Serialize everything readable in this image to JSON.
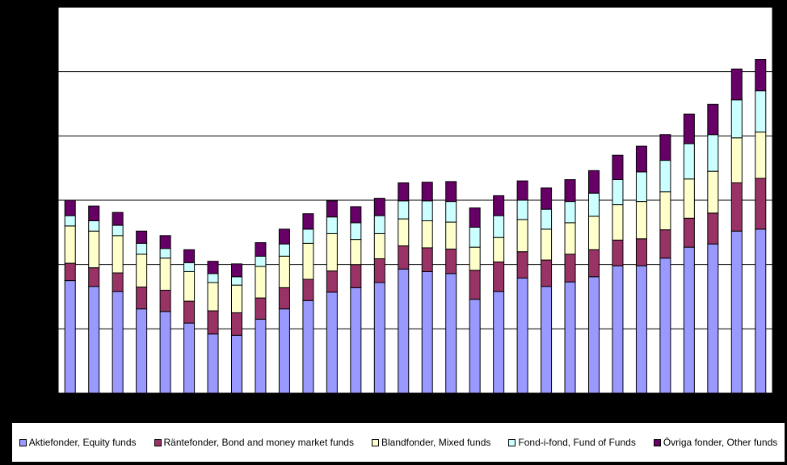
{
  "chart_data": {
    "type": "bar",
    "stacked": true,
    "title": "",
    "xlabel": "",
    "ylabel": "",
    "ylim": [
      0,
      6
    ],
    "grid": true,
    "legend_position": "bottom",
    "categories": [
      "",
      "",
      "",
      "",
      "",
      "",
      "",
      "",
      "",
      "",
      "",
      "",
      "",
      "",
      "",
      "",
      "",
      "",
      "",
      "",
      "",
      "",
      "",
      "",
      "",
      "",
      "",
      "",
      "",
      ""
    ],
    "series": [
      {
        "name": "Aktiefonder, Equity funds",
        "color": "#9999ff",
        "values": [
          1.75,
          1.66,
          1.58,
          1.31,
          1.27,
          1.09,
          0.92,
          0.9,
          1.15,
          1.31,
          1.44,
          1.57,
          1.64,
          1.72,
          1.93,
          1.89,
          1.86,
          1.46,
          1.58,
          1.79,
          1.66,
          1.73,
          1.81,
          1.98,
          1.98,
          2.1,
          2.27,
          2.32,
          2.52,
          2.55
        ]
      },
      {
        "name": "Räntefonder, Bond and money market funds",
        "color": "#993366",
        "values": [
          0.27,
          0.29,
          0.29,
          0.34,
          0.33,
          0.34,
          0.36,
          0.35,
          0.33,
          0.33,
          0.33,
          0.33,
          0.36,
          0.37,
          0.36,
          0.37,
          0.38,
          0.45,
          0.46,
          0.41,
          0.41,
          0.43,
          0.42,
          0.4,
          0.42,
          0.44,
          0.45,
          0.48,
          0.75,
          0.79
        ]
      },
      {
        "name": "Blandfonder, Mixed funds",
        "color": "#ffffcc",
        "values": [
          0.58,
          0.57,
          0.58,
          0.51,
          0.5,
          0.46,
          0.44,
          0.43,
          0.49,
          0.49,
          0.56,
          0.58,
          0.39,
          0.39,
          0.42,
          0.42,
          0.42,
          0.36,
          0.38,
          0.5,
          0.48,
          0.49,
          0.52,
          0.55,
          0.58,
          0.59,
          0.61,
          0.65,
          0.7,
          0.72
        ]
      },
      {
        "name": "Fond-i-fond, Fund of Funds",
        "color": "#ccffff",
        "values": [
          0.16,
          0.16,
          0.16,
          0.17,
          0.15,
          0.14,
          0.14,
          0.13,
          0.16,
          0.19,
          0.22,
          0.26,
          0.26,
          0.28,
          0.28,
          0.31,
          0.32,
          0.31,
          0.34,
          0.3,
          0.31,
          0.33,
          0.36,
          0.39,
          0.46,
          0.49,
          0.55,
          0.57,
          0.59,
          0.64
        ]
      },
      {
        "name": "Övriga fonder, Other funds",
        "color": "#660066",
        "values": [
          0.24,
          0.23,
          0.2,
          0.19,
          0.2,
          0.2,
          0.19,
          0.2,
          0.21,
          0.23,
          0.24,
          0.25,
          0.25,
          0.27,
          0.28,
          0.29,
          0.31,
          0.3,
          0.31,
          0.3,
          0.33,
          0.34,
          0.35,
          0.38,
          0.4,
          0.4,
          0.46,
          0.47,
          0.48,
          0.49
        ]
      }
    ]
  }
}
